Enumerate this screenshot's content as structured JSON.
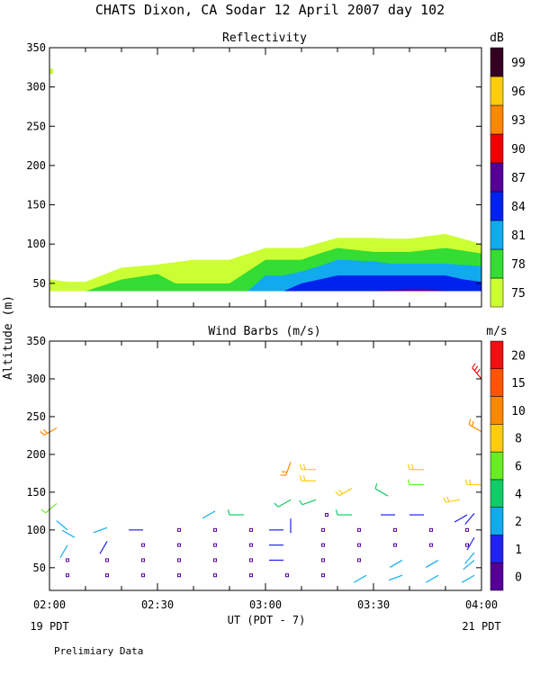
{
  "title": "CHATS Dixon, CA  Sodar  12 April 2007  day 102",
  "shared_ylabel": "Altitude (m)",
  "xlabel": "UT  (PDT - 7)",
  "x_ticks": [
    "02:00",
    "02:30",
    "03:00",
    "03:30",
    "04:00"
  ],
  "x_left_note": "19 PDT",
  "x_right_note": "21 PDT",
  "footer": "Prelimiary Data",
  "chart_data": [
    {
      "type": "area",
      "title": "Reflectivity",
      "colorbar_unit": "dB",
      "colorbar_levels": [
        "75",
        "78",
        "81",
        "84",
        "87",
        "90",
        "93",
        "96",
        "99"
      ],
      "colorbar_colors": [
        "#ccff33",
        "#33dd33",
        "#11aaee",
        "#0022ee",
        "#550099",
        "#ee0000",
        "#ff8800",
        "#ffcc11",
        "#330022"
      ],
      "ylim": [
        20,
        350
      ],
      "y_ticks": [
        "50",
        "100",
        "150",
        "200",
        "250",
        "300",
        "350"
      ],
      "xlim": [
        "02:00",
        "04:00"
      ],
      "bands": [
        {
          "level": "75",
          "x": [
            "02:00",
            "02:05",
            "02:10",
            "02:20",
            "02:30",
            "02:40",
            "02:50",
            "03:00",
            "03:05",
            "03:10",
            "03:20",
            "03:30",
            "03:35",
            "03:40",
            "03:50",
            "04:00"
          ],
          "top": [
            55,
            52,
            52,
            70,
            74,
            80,
            80,
            95,
            95,
            95,
            108,
            108,
            107,
            107,
            113,
            100
          ]
        },
        {
          "level": "78",
          "x": [
            "02:10",
            "02:20",
            "02:30",
            "02:35",
            "02:40",
            "02:50",
            "02:55",
            "03:00",
            "03:05",
            "03:10",
            "03:15",
            "03:20",
            "03:30",
            "03:35",
            "03:40",
            "03:50",
            "04:00"
          ],
          "top": [
            40,
            55,
            62,
            50,
            50,
            50,
            65,
            80,
            80,
            80,
            88,
            95,
            90,
            90,
            90,
            95,
            88
          ]
        },
        {
          "level": "81",
          "x": [
            "02:55",
            "03:00",
            "03:05",
            "03:10",
            "03:15",
            "03:20",
            "03:30",
            "03:35",
            "03:40",
            "03:50",
            "04:00"
          ],
          "top": [
            40,
            60,
            60,
            65,
            72,
            80,
            78,
            75,
            75,
            75,
            72
          ]
        },
        {
          "level": "84",
          "x": [
            "03:05",
            "03:10",
            "03:15",
            "03:20",
            "03:30",
            "03:35",
            "03:40",
            "03:50",
            "03:55",
            "04:00"
          ],
          "top": [
            40,
            50,
            55,
            60,
            60,
            60,
            60,
            60,
            55,
            52
          ]
        },
        {
          "level": "87",
          "x": [
            "03:30",
            "03:40",
            "03:45",
            "03:50"
          ],
          "top": [
            40,
            43,
            43,
            40
          ]
        }
      ],
      "isolated_points": [
        {
          "x": "02:00",
          "y": 320,
          "level": "75"
        }
      ]
    },
    {
      "type": "scatter",
      "title": "Wind Barbs (m/s)",
      "colorbar_unit": "m/s",
      "colorbar_levels": [
        "0",
        "1",
        "2",
        "4",
        "6",
        "8",
        "10",
        "15",
        "20"
      ],
      "colorbar_colors": [
        "#550099",
        "#2222ee",
        "#11aaee",
        "#11cc66",
        "#66ee22",
        "#ffcc11",
        "#ff8800",
        "#ff5500",
        "#ee1111"
      ],
      "ylim": [
        20,
        350
      ],
      "y_ticks": [
        "50",
        "100",
        "150",
        "200",
        "250",
        "300",
        "350"
      ],
      "xlim": [
        "02:00",
        "04:00"
      ],
      "barbs": [
        {
          "t": "02:02",
          "h": 235,
          "s": 10,
          "d": 240
        },
        {
          "t": "02:02",
          "h": 135,
          "s": 6,
          "d": 230
        },
        {
          "t": "02:05",
          "h": 100,
          "s": 2,
          "d": 310
        },
        {
          "t": "02:07",
          "h": 90,
          "s": 2,
          "d": 300
        },
        {
          "t": "02:05",
          "h": 80,
          "s": 2,
          "d": 210
        },
        {
          "t": "02:05",
          "h": 60,
          "s": 0,
          "d": 0
        },
        {
          "t": "02:05",
          "h": 40,
          "s": 0,
          "d": 0
        },
        {
          "t": "02:16",
          "h": 103,
          "s": 2,
          "d": 250
        },
        {
          "t": "02:16",
          "h": 85,
          "s": 1,
          "d": 210
        },
        {
          "t": "02:16",
          "h": 60,
          "s": 0,
          "d": 0
        },
        {
          "t": "02:16",
          "h": 40,
          "s": 0,
          "d": 0
        },
        {
          "t": "02:26",
          "h": 100,
          "s": 1,
          "d": 270
        },
        {
          "t": "02:26",
          "h": 80,
          "s": 0,
          "d": 0
        },
        {
          "t": "02:26",
          "h": 60,
          "s": 0,
          "d": 0
        },
        {
          "t": "02:26",
          "h": 40,
          "s": 0,
          "d": 0
        },
        {
          "t": "02:36",
          "h": 100,
          "s": 0,
          "d": 0
        },
        {
          "t": "02:36",
          "h": 80,
          "s": 0,
          "d": 0
        },
        {
          "t": "02:36",
          "h": 60,
          "s": 0,
          "d": 0
        },
        {
          "t": "02:36",
          "h": 40,
          "s": 0,
          "d": 0
        },
        {
          "t": "02:46",
          "h": 125,
          "s": 2,
          "d": 240
        },
        {
          "t": "02:46",
          "h": 100,
          "s": 0,
          "d": 0
        },
        {
          "t": "02:46",
          "h": 80,
          "s": 0,
          "d": 0
        },
        {
          "t": "02:46",
          "h": 60,
          "s": 0,
          "d": 0
        },
        {
          "t": "02:46",
          "h": 40,
          "s": 0,
          "d": 0
        },
        {
          "t": "02:54",
          "h": 120,
          "s": 4,
          "d": 270
        },
        {
          "t": "02:56",
          "h": 100,
          "s": 0,
          "d": 0
        },
        {
          "t": "02:56",
          "h": 80,
          "s": 0,
          "d": 0
        },
        {
          "t": "02:56",
          "h": 60,
          "s": 0,
          "d": 0
        },
        {
          "t": "02:56",
          "h": 40,
          "s": 0,
          "d": 0
        },
        {
          "t": "03:07",
          "h": 190,
          "s": 10,
          "d": 200
        },
        {
          "t": "03:07",
          "h": 140,
          "s": 5,
          "d": 240
        },
        {
          "t": "03:07",
          "h": 115,
          "s": 1,
          "d": 180
        },
        {
          "t": "03:05",
          "h": 100,
          "s": 1,
          "d": 270
        },
        {
          "t": "03:05",
          "h": 80,
          "s": 1,
          "d": 270
        },
        {
          "t": "03:05",
          "h": 60,
          "s": 1,
          "d": 270
        },
        {
          "t": "03:06",
          "h": 40,
          "s": 0,
          "d": 0
        },
        {
          "t": "03:14",
          "h": 180,
          "s": 8,
          "d": 270
        },
        {
          "t": "03:14",
          "h": 165,
          "s": 8,
          "d": 270
        },
        {
          "t": "03:14",
          "h": 140,
          "s": 5,
          "d": 250
        },
        {
          "t": "03:17",
          "h": 120,
          "s": 0,
          "d": 0
        },
        {
          "t": "03:16",
          "h": 100,
          "s": 0,
          "d": 0
        },
        {
          "t": "03:16",
          "h": 80,
          "s": 0,
          "d": 0
        },
        {
          "t": "03:16",
          "h": 60,
          "s": 0,
          "d": 0
        },
        {
          "t": "03:16",
          "h": 40,
          "s": 0,
          "d": 0
        },
        {
          "t": "03:24",
          "h": 155,
          "s": 8,
          "d": 240
        },
        {
          "t": "03:24",
          "h": 120,
          "s": 4,
          "d": 270
        },
        {
          "t": "03:26",
          "h": 100,
          "s": 0,
          "d": 0
        },
        {
          "t": "03:26",
          "h": 80,
          "s": 0,
          "d": 0
        },
        {
          "t": "03:26",
          "h": 60,
          "s": 0,
          "d": 0
        },
        {
          "t": "03:28",
          "h": 40,
          "s": 2,
          "d": 240
        },
        {
          "t": "03:34",
          "h": 145,
          "s": 4,
          "d": 300
        },
        {
          "t": "03:36",
          "h": 120,
          "s": 1,
          "d": 270
        },
        {
          "t": "03:36",
          "h": 100,
          "s": 0,
          "d": 0
        },
        {
          "t": "03:36",
          "h": 80,
          "s": 0,
          "d": 0
        },
        {
          "t": "03:38",
          "h": 60,
          "s": 2,
          "d": 240
        },
        {
          "t": "03:38",
          "h": 40,
          "s": 2,
          "d": 250
        },
        {
          "t": "03:44",
          "h": 180,
          "s": 8,
          "d": 270
        },
        {
          "t": "03:44",
          "h": 160,
          "s": 6,
          "d": 270
        },
        {
          "t": "03:44",
          "h": 120,
          "s": 1,
          "d": 270
        },
        {
          "t": "03:46",
          "h": 100,
          "s": 0,
          "d": 0
        },
        {
          "t": "03:46",
          "h": 80,
          "s": 0,
          "d": 0
        },
        {
          "t": "03:48",
          "h": 60,
          "s": 2,
          "d": 240
        },
        {
          "t": "03:48",
          "h": 40,
          "s": 2,
          "d": 240
        },
        {
          "t": "03:54",
          "h": 140,
          "s": 8,
          "d": 260
        },
        {
          "t": "03:56",
          "h": 120,
          "s": 1,
          "d": 240
        },
        {
          "t": "03:56",
          "h": 100,
          "s": 0,
          "d": 0
        },
        {
          "t": "03:56",
          "h": 80,
          "s": 0,
          "d": 0
        },
        {
          "t": "03:58",
          "h": 60,
          "s": 2,
          "d": 230
        },
        {
          "t": "03:58",
          "h": 40,
          "s": 2,
          "d": 240
        },
        {
          "t": "03:58",
          "h": 122,
          "s": 1,
          "d": 220
        },
        {
          "t": "03:58",
          "h": 90,
          "s": 1,
          "d": 210
        },
        {
          "t": "03:58",
          "h": 70,
          "s": 2,
          "d": 220
        },
        {
          "t": "04:00",
          "h": 300,
          "s": 20,
          "d": 320
        },
        {
          "t": "04:00",
          "h": 230,
          "s": 10,
          "d": 300
        },
        {
          "t": "04:00",
          "h": 160,
          "s": 8,
          "d": 270
        }
      ]
    }
  ]
}
